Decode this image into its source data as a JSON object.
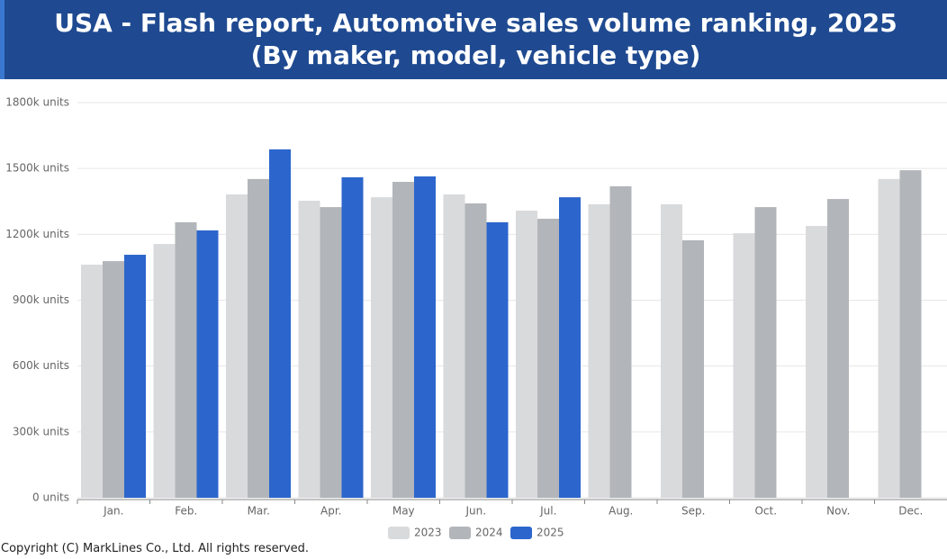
{
  "chart_data": {
    "type": "bar",
    "title": "USA - Flash report, Automotive sales volume ranking, 2025 (By maker, model, vehicle type)",
    "categories": [
      "Jan.",
      "Feb.",
      "Mar.",
      "Apr.",
      "May",
      "Jun.",
      "Jul.",
      "Aug.",
      "Sep.",
      "Oct.",
      "Nov.",
      "Dec."
    ],
    "series": [
      {
        "name": "2023",
        "color": "#d9dadc",
        "values": [
          1062000,
          1156000,
          1382000,
          1353000,
          1369000,
          1382000,
          1308000,
          1337000,
          1337000,
          1205000,
          1238000,
          1452000
        ]
      },
      {
        "name": "2024",
        "color": "#b2b5b9",
        "values": [
          1078000,
          1255000,
          1452000,
          1324000,
          1439000,
          1341000,
          1271000,
          1419000,
          1173000,
          1324000,
          1361000,
          1492000
        ]
      },
      {
        "name": "2025",
        "color": "#2c66cc",
        "values": [
          1107000,
          1218000,
          1587000,
          1460000,
          1464000,
          1255000,
          1369000,
          null,
          null,
          null,
          null,
          null
        ]
      }
    ],
    "ylim": [
      0,
      1800000
    ],
    "yticks": [
      {
        "value": 0,
        "label": "0 units"
      },
      {
        "value": 300000,
        "label": "300k units"
      },
      {
        "value": 600000,
        "label": "600k units"
      },
      {
        "value": 900000,
        "label": "900k units"
      },
      {
        "value": 1200000,
        "label": "1200k units"
      },
      {
        "value": 1500000,
        "label": "1500k units"
      },
      {
        "value": 1800000,
        "label": "1800k units"
      }
    ],
    "grid": true
  },
  "copyright": "Copyright (C) MarkLines Co., Ltd. All rights reserved."
}
